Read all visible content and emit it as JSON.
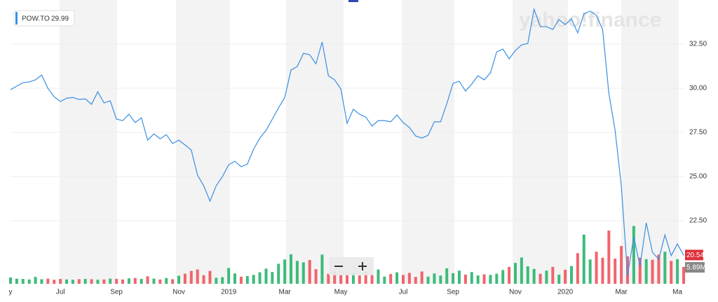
{
  "chart_data": {
    "type": "line",
    "symbol": "POW.TO",
    "legend_value": 29.99,
    "watermark": "yahoo!finance",
    "categories": [
      "y",
      null,
      null,
      null,
      null,
      null,
      null,
      null,
      "Jul",
      null,
      null,
      null,
      null,
      null,
      null,
      null,
      null,
      "Sep",
      null,
      null,
      null,
      null,
      null,
      null,
      null,
      null,
      null,
      "Nov",
      null,
      null,
      null,
      null,
      null,
      null,
      null,
      "2019",
      null,
      null,
      null,
      null,
      null,
      null,
      null,
      null,
      "Mar",
      null,
      null,
      null,
      null,
      null,
      null,
      null,
      null,
      "May",
      null,
      null,
      null,
      null,
      null,
      null,
      null,
      null,
      null,
      "Jul",
      null,
      null,
      null,
      null,
      null,
      null,
      null,
      "Sep",
      null,
      null,
      null,
      null,
      null,
      null,
      null,
      null,
      null,
      "Nov",
      null,
      null,
      null,
      null,
      null,
      null,
      null,
      "2020",
      null,
      null,
      null,
      null,
      null,
      null,
      null,
      null,
      "Mar",
      null,
      null,
      null,
      null,
      null,
      null,
      null,
      null,
      "Ma",
      null
    ],
    "series": [
      {
        "name": "POW.TO",
        "color": "#3b8fe0",
        "values": [
          29.92,
          30.12,
          30.32,
          30.36,
          30.48,
          30.75,
          30.0,
          29.52,
          29.25,
          29.44,
          29.48,
          29.37,
          29.4,
          29.09,
          29.8,
          29.17,
          29.29,
          28.25,
          28.17,
          28.53,
          28.06,
          28.33,
          27.06,
          27.42,
          27.14,
          27.38,
          26.87,
          27.06,
          26.79,
          26.51,
          25.08,
          24.48,
          23.61,
          24.48,
          25.0,
          25.67,
          25.87,
          25.56,
          25.71,
          26.55,
          27.18,
          27.62,
          28.25,
          28.89,
          29.48,
          31.03,
          31.23,
          31.98,
          31.9,
          31.39,
          32.62,
          30.71,
          30.48,
          29.96,
          28.02,
          28.81,
          28.53,
          28.37,
          27.86,
          28.17,
          28.17,
          28.1,
          28.49,
          28.06,
          27.78,
          27.3,
          27.18,
          27.34,
          28.1,
          28.1,
          29.13,
          30.28,
          30.4,
          29.84,
          30.24,
          30.71,
          30.48,
          30.87,
          32.06,
          32.22,
          31.67,
          32.14,
          32.46,
          32.54,
          34.48,
          33.49,
          33.49,
          33.33,
          33.89,
          33.61,
          33.93,
          33.14,
          34.21,
          34.37,
          34.13,
          33.33,
          29.72,
          27.62,
          24.48,
          19.4,
          21.59,
          19.92,
          22.38,
          20.71,
          20.32,
          21.7,
          20.52,
          21.19,
          20.54
        ]
      }
    ],
    "volume": {
      "values": [
        2.2,
        1.8,
        1.7,
        1.5,
        2.4,
        1.6,
        1.8,
        1.4,
        1.7,
        1.5,
        1.4,
        1.6,
        1.7,
        1.6,
        1.4,
        1.5,
        1.8,
        1.7,
        1.5,
        1.9,
        2.0,
        1.7,
        2.6,
        1.8,
        1.5,
        2.0,
        1.6,
        2.8,
        3.5,
        4.5,
        5.0,
        3.0,
        4.5,
        2.1,
        2.3,
        5.5,
        3.6,
        2.5,
        2.7,
        3.1,
        4.0,
        5.3,
        4.1,
        7.0,
        8.5,
        10.3,
        8.0,
        7.5,
        8.3,
        5.1,
        10.2,
        3.5,
        4.3,
        3.2,
        3.3,
        3.8,
        2.9,
        4.1,
        3.6,
        5.0,
        2.5,
        3.4,
        4.0,
        3.1,
        3.8,
        2.4,
        4.3,
        2.5,
        3.6,
        2.9,
        5.4,
        3.7,
        4.6,
        3.2,
        4.1,
        2.9,
        3.3,
        3.1,
        3.5,
        4.8,
        5.9,
        7.3,
        9.2,
        6.1,
        5.2,
        3.5,
        4.6,
        5.9,
        3.2,
        4.9,
        6.2,
        10.7,
        17.2,
        8.5,
        11.2,
        9.1,
        18.6,
        8.8,
        13.2,
        9.6,
        20.2,
        9.1,
        8.6,
        8.4,
        10.2,
        11.2,
        8.0,
        8.6,
        5.89
      ],
      "last_label": "5.89M",
      "up_color": "#3dbb7b",
      "down_color": "#f0646c",
      "vlim": [
        0,
        24
      ]
    },
    "ylim": [
      18.93,
      35
    ],
    "yticks": [
      {
        "value": 22.5,
        "label": "22.50"
      },
      {
        "value": 25,
        "label": "25.00"
      },
      {
        "value": 27.5,
        "label": "27.50"
      },
      {
        "value": 30,
        "label": "30.00"
      },
      {
        "value": 32.5,
        "label": "32.50"
      }
    ],
    "grid": true
  }
}
